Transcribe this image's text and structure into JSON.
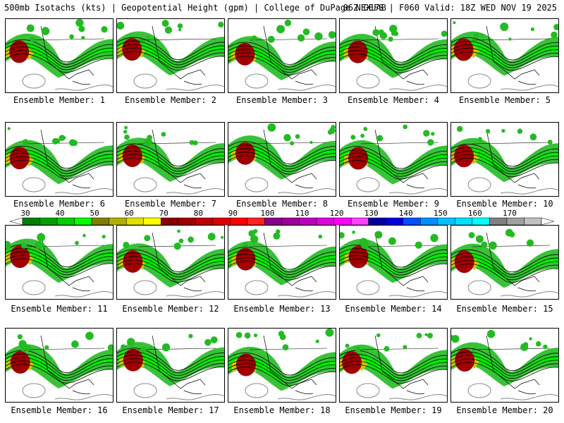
{
  "header": {
    "left": "500mb Isotachs (kts) | Geopotential Height (gpm) | College of DuPage NEXLAB",
    "right": "06Z GEFS | F060 Valid: 18Z WED NOV 19 2025"
  },
  "members": [
    "Ensemble Member: 1",
    "Ensemble Member: 2",
    "Ensemble Member: 3",
    "Ensemble Member: 4",
    "Ensemble Member: 5",
    "Ensemble Member: 6",
    "Ensemble Member: 7",
    "Ensemble Member: 8",
    "Ensemble Member: 9",
    "Ensemble Member: 10",
    "Ensemble Member: 11",
    "Ensemble Member: 12",
    "Ensemble Member: 13",
    "Ensemble Member: 14",
    "Ensemble Member: 15",
    "Ensemble Member: 16",
    "Ensemble Member: 17",
    "Ensemble Member: 18",
    "Ensemble Member: 19",
    "Ensemble Member: 20"
  ],
  "colorbar": {
    "labels": [
      "30",
      "40",
      "50",
      "60",
      "70",
      "80",
      "90",
      "100",
      "110",
      "120",
      "130",
      "140",
      "150",
      "160",
      "170"
    ],
    "colors": [
      "#007f00",
      "#00a000",
      "#00d000",
      "#00ff00",
      "#808000",
      "#b0b000",
      "#e0e000",
      "#ffff00",
      "#8b0000",
      "#a00000",
      "#c00000",
      "#e00000",
      "#ff0000",
      "#ff2020",
      "#8b008b",
      "#a000a0",
      "#c000c0",
      "#e000e0",
      "#ff00ff",
      "#ff40ff",
      "#0000a0",
      "#0000e0",
      "#0050ff",
      "#0090ff",
      "#00c0ff",
      "#00e0ff",
      "#00ffff",
      "#808080",
      "#a0a0a0",
      "#c0c0c0"
    ]
  }
}
